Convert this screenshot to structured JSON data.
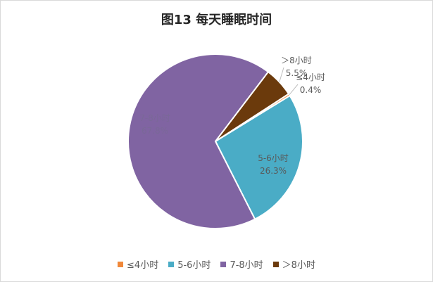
{
  "chart_data": {
    "type": "pie",
    "title": "图13  每天睡眠时间",
    "slices": [
      {
        "label": "≤4小时",
        "value": 0.4,
        "value_label": "0.4%",
        "color": "#f0883a"
      },
      {
        "label": "5-6小时",
        "value": 26.3,
        "value_label": "26.3%",
        "color": "#4aacc6"
      },
      {
        "label": "7-8小时",
        "value": 67.8,
        "value_label": "67.8%",
        "color": "#8064a2"
      },
      {
        "label": "＞8小时",
        "value": 5.5,
        "value_label": "5.5%",
        "color": "#6b3a0c"
      }
    ],
    "legend_position": "bottom"
  }
}
